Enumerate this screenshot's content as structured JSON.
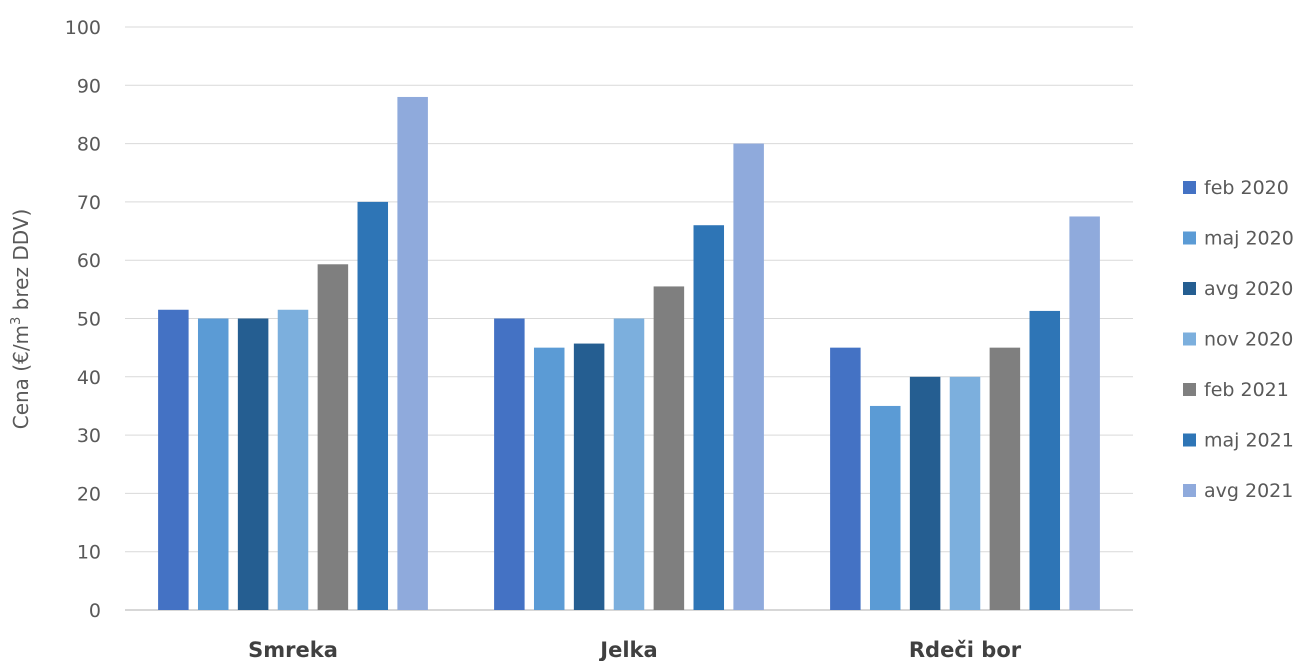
{
  "chart_data": {
    "type": "bar",
    "categories": [
      "Smreka",
      "Jelka",
      "Rdeči bor"
    ],
    "series": [
      {
        "name": "feb 2020",
        "color": "#4472c4",
        "values": [
          51.5,
          50,
          45
        ]
      },
      {
        "name": "maj 2020",
        "color": "#5b9bd5",
        "values": [
          50,
          45,
          35
        ]
      },
      {
        "name": "avg 2020",
        "color": "#255e91",
        "values": [
          50,
          45.7,
          40
        ]
      },
      {
        "name": "nov 2020",
        "color": "#7cafdd",
        "values": [
          51.5,
          50,
          40
        ]
      },
      {
        "name": "feb 2021",
        "color": "#7f7f7f",
        "values": [
          59.3,
          55.5,
          45
        ]
      },
      {
        "name": "maj 2021",
        "color": "#2e75b6",
        "values": [
          70,
          66,
          51.3
        ]
      },
      {
        "name": "avg 2021",
        "color": "#8faadc",
        "values": [
          88,
          80,
          67.5
        ]
      }
    ],
    "ylabel_prefix": "Cena (€/m",
    "ylabel_sup": "3",
    "ylabel_suffix": " brez DDV)",
    "ylim": [
      0,
      100
    ],
    "yticks": [
      "0",
      "10",
      "20",
      "30",
      "40",
      "50",
      "60",
      "70",
      "80",
      "90",
      "100"
    ],
    "grid": true,
    "legend_position": "right"
  }
}
